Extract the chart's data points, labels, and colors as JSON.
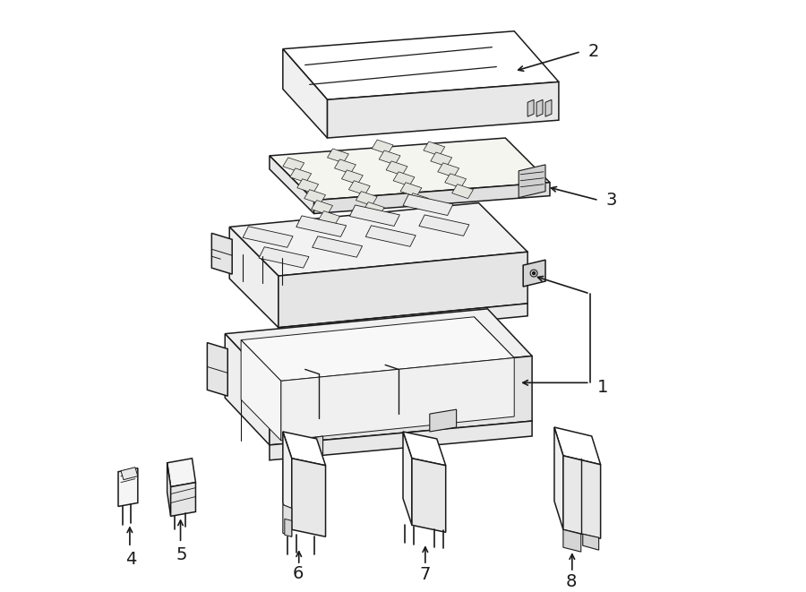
{
  "bg_color": "#ffffff",
  "line_color": "#1a1a1a",
  "line_width": 1.1,
  "label_fontsize": 13,
  "label_color": "#1a1a1a"
}
